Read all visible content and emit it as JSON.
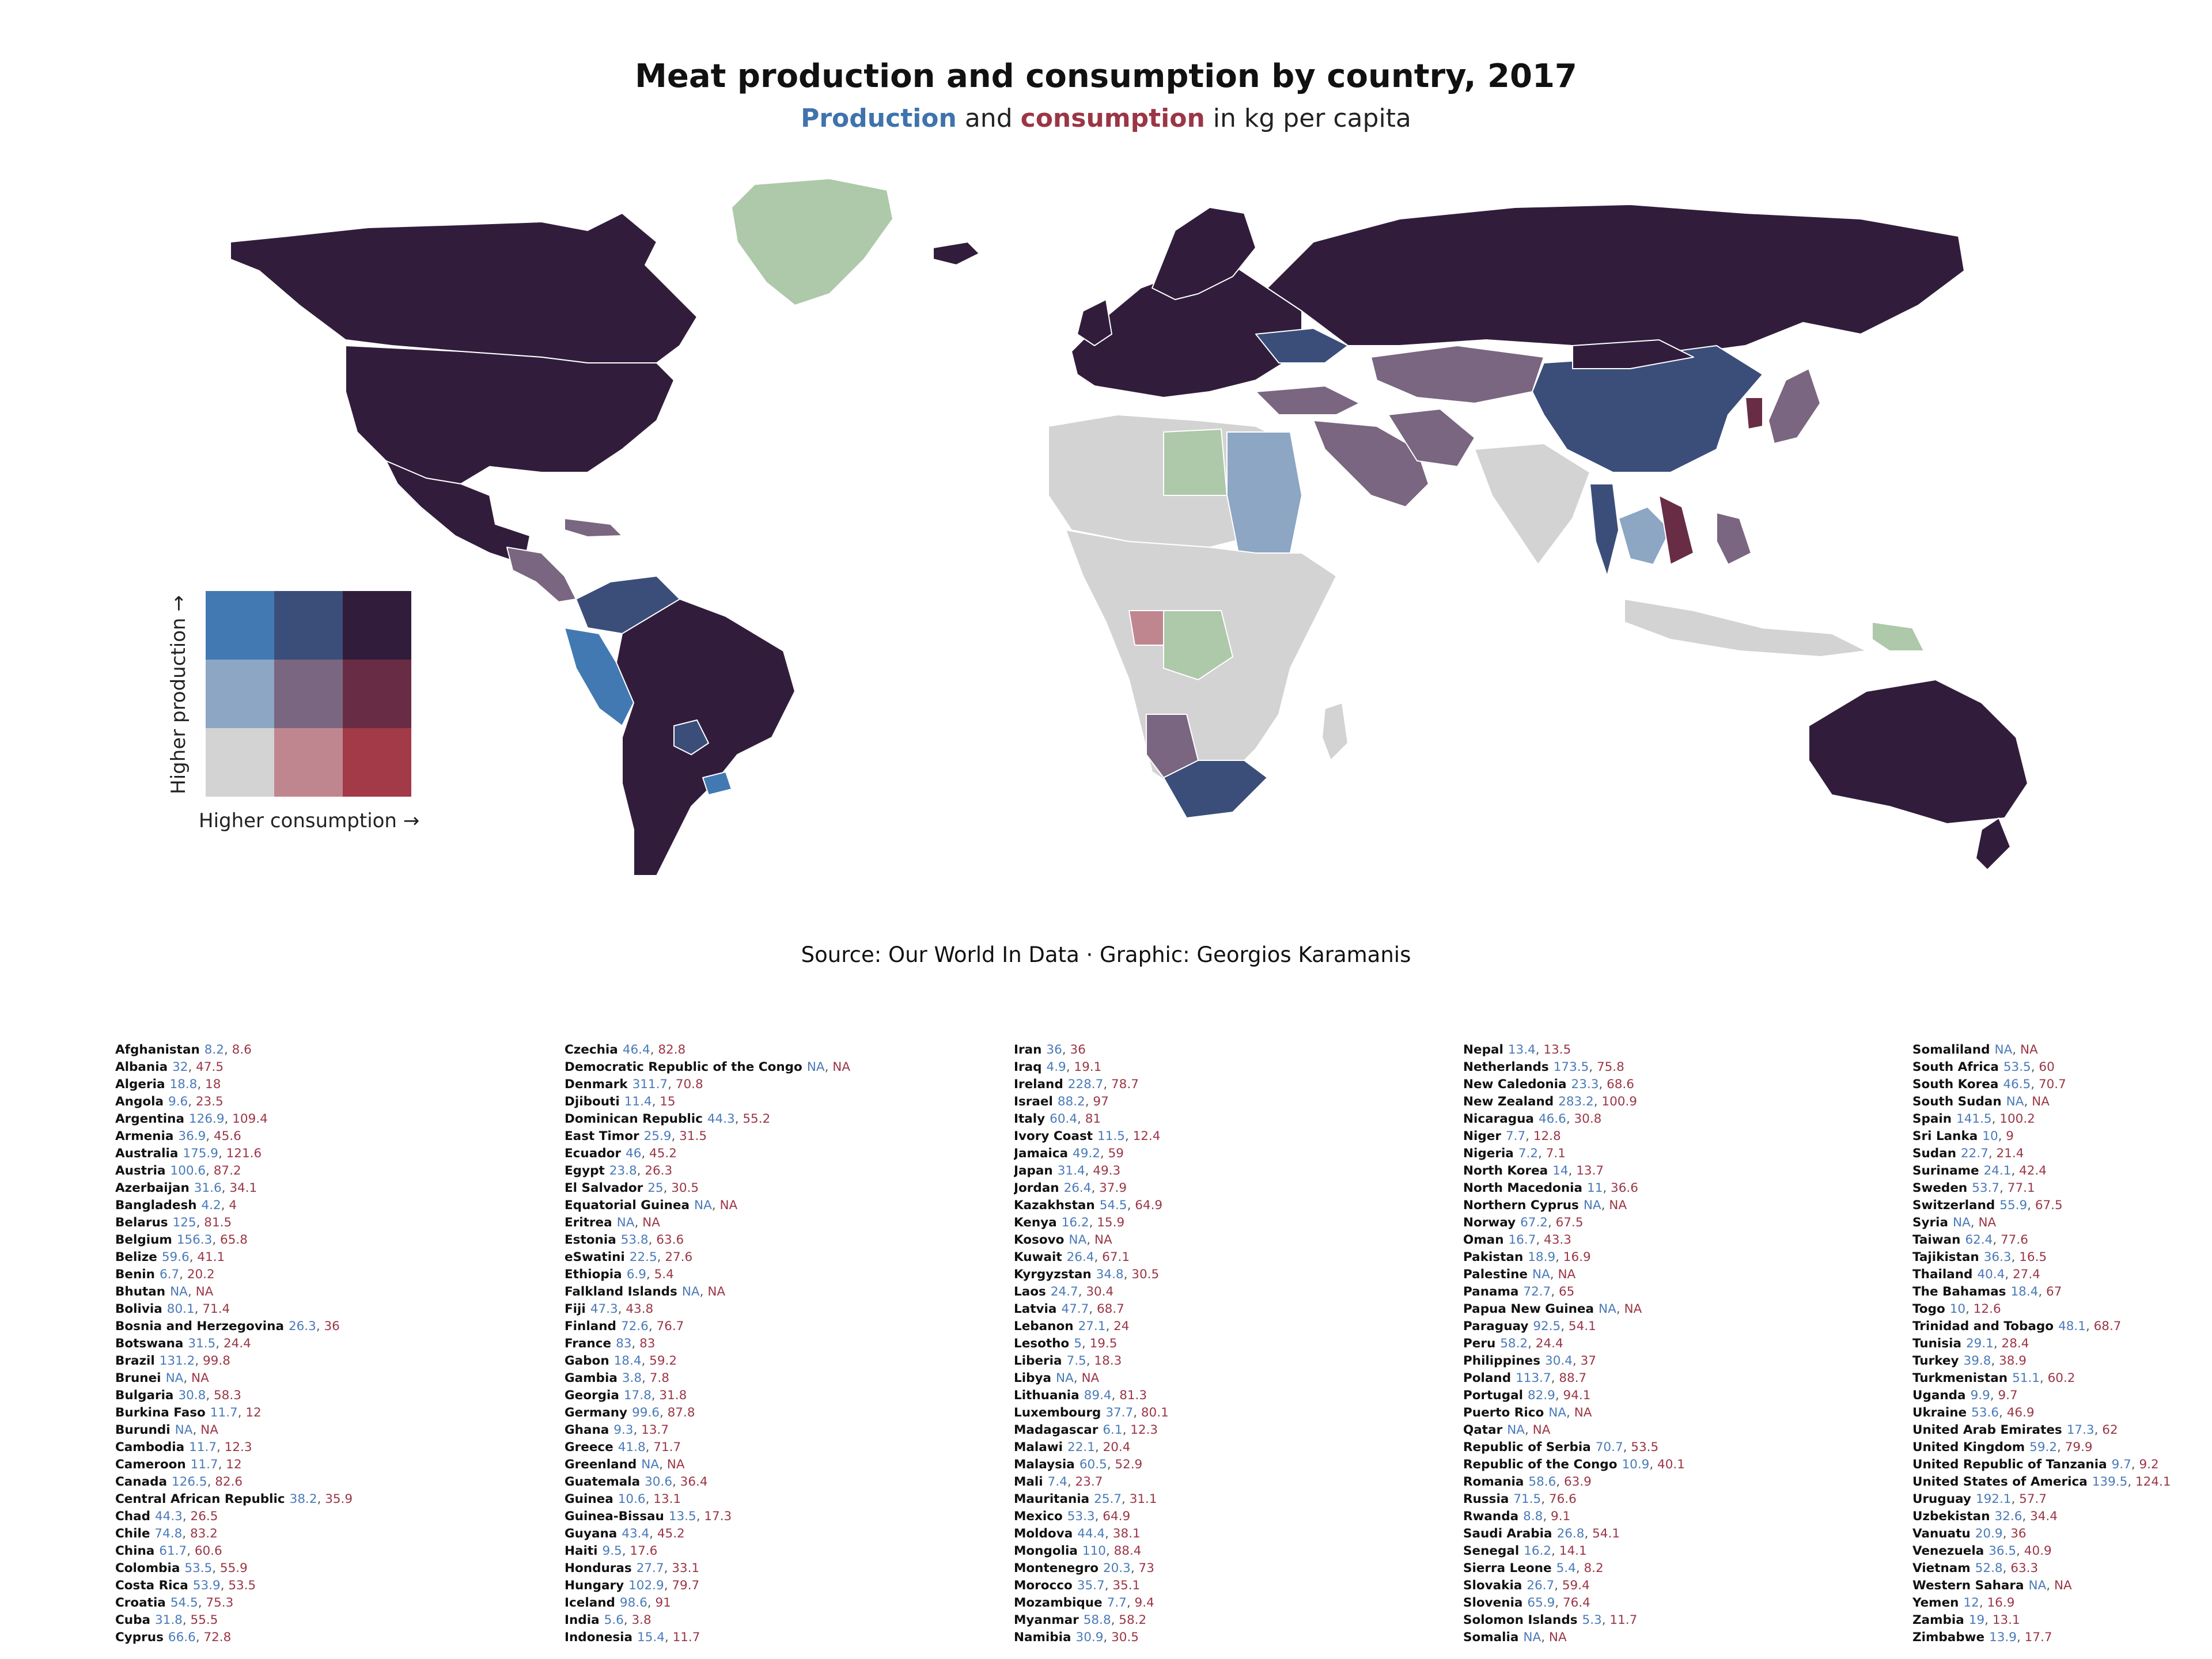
{
  "title": "Meat production and consumption by country, 2017",
  "subtitle": {
    "production_word": "Production",
    "and_word": " and ",
    "consumption_word": "consumption",
    "rest": " in kg per capita"
  },
  "legend": {
    "y_label": "Higher production →",
    "x_label": "Higher consumption →",
    "palette": [
      [
        "#4379b2",
        "#3b4e7a",
        "#311d3b"
      ],
      [
        "#8ca6c4",
        "#7a6680",
        "#682d45"
      ],
      [
        "#d3d3d3",
        "#c08690",
        "#a33a48"
      ]
    ],
    "na_color": "#aec8aa"
  },
  "source": "Source: Our World In Data · Graphic: Georgios Karamanis",
  "colors": {
    "production": "#4a7ab8",
    "consumption": "#9a3646",
    "dark": "#311d3b",
    "ocean": "#ffffff"
  },
  "countries": [
    {
      "name": "Afghanistan",
      "production": "8.2",
      "consumption": "8.6"
    },
    {
      "name": "Albania",
      "production": "32",
      "consumption": "47.5"
    },
    {
      "name": "Algeria",
      "production": "18.8",
      "consumption": "18"
    },
    {
      "name": "Angola",
      "production": "9.6",
      "consumption": "23.5"
    },
    {
      "name": "Argentina",
      "production": "126.9",
      "consumption": "109.4"
    },
    {
      "name": "Armenia",
      "production": "36.9",
      "consumption": "45.6"
    },
    {
      "name": "Australia",
      "production": "175.9",
      "consumption": "121.6"
    },
    {
      "name": "Austria",
      "production": "100.6",
      "consumption": "87.2"
    },
    {
      "name": "Azerbaijan",
      "production": "31.6",
      "consumption": "34.1"
    },
    {
      "name": "Bangladesh",
      "production": "4.2",
      "consumption": "4"
    },
    {
      "name": "Belarus",
      "production": "125",
      "consumption": "81.5"
    },
    {
      "name": "Belgium",
      "production": "156.3",
      "consumption": "65.8"
    },
    {
      "name": "Belize",
      "production": "59.6",
      "consumption": "41.1"
    },
    {
      "name": "Benin",
      "production": "6.7",
      "consumption": "20.2"
    },
    {
      "name": "Bhutan",
      "production": "NA",
      "consumption": "NA"
    },
    {
      "name": "Bolivia",
      "production": "80.1",
      "consumption": "71.4"
    },
    {
      "name": "Bosnia and Herzegovina",
      "production": "26.3",
      "consumption": "36"
    },
    {
      "name": "Botswana",
      "production": "31.5",
      "consumption": "24.4"
    },
    {
      "name": "Brazil",
      "production": "131.2",
      "consumption": "99.8"
    },
    {
      "name": "Brunei",
      "production": "NA",
      "consumption": "NA"
    },
    {
      "name": "Bulgaria",
      "production": "30.8",
      "consumption": "58.3"
    },
    {
      "name": "Burkina Faso",
      "production": "11.7",
      "consumption": "12"
    },
    {
      "name": "Burundi",
      "production": "NA",
      "consumption": "NA"
    },
    {
      "name": "Cambodia",
      "production": "11.7",
      "consumption": "12.3"
    },
    {
      "name": "Cameroon",
      "production": "11.7",
      "consumption": "12"
    },
    {
      "name": "Canada",
      "production": "126.5",
      "consumption": "82.6"
    },
    {
      "name": "Central African Republic",
      "production": "38.2",
      "consumption": "35.9"
    },
    {
      "name": "Chad",
      "production": "44.3",
      "consumption": "26.5"
    },
    {
      "name": "Chile",
      "production": "74.8",
      "consumption": "83.2"
    },
    {
      "name": "China",
      "production": "61.7",
      "consumption": "60.6"
    },
    {
      "name": "Colombia",
      "production": "53.5",
      "consumption": "55.9"
    },
    {
      "name": "Costa Rica",
      "production": "53.9",
      "consumption": "53.5"
    },
    {
      "name": "Croatia",
      "production": "54.5",
      "consumption": "75.3"
    },
    {
      "name": "Cuba",
      "production": "31.8",
      "consumption": "55.5"
    },
    {
      "name": "Cyprus",
      "production": "66.6",
      "consumption": "72.8"
    },
    {
      "name": "Czechia",
      "production": "46.4",
      "consumption": "82.8"
    },
    {
      "name": "Democratic Republic of the Congo",
      "production": "NA",
      "consumption": "NA"
    },
    {
      "name": "Denmark",
      "production": "311.7",
      "consumption": "70.8"
    },
    {
      "name": "Djibouti",
      "production": "11.4",
      "consumption": "15"
    },
    {
      "name": "Dominican Republic",
      "production": "44.3",
      "consumption": "55.2"
    },
    {
      "name": "East Timor",
      "production": "25.9",
      "consumption": "31.5"
    },
    {
      "name": "Ecuador",
      "production": "46",
      "consumption": "45.2"
    },
    {
      "name": "Egypt",
      "production": "23.8",
      "consumption": "26.3"
    },
    {
      "name": "El Salvador",
      "production": "25",
      "consumption": "30.5"
    },
    {
      "name": "Equatorial Guinea",
      "production": "NA",
      "consumption": "NA"
    },
    {
      "name": "Eritrea",
      "production": "NA",
      "consumption": "NA"
    },
    {
      "name": "Estonia",
      "production": "53.8",
      "consumption": "63.6"
    },
    {
      "name": "eSwatini",
      "production": "22.5",
      "consumption": "27.6"
    },
    {
      "name": "Ethiopia",
      "production": "6.9",
      "consumption": "5.4"
    },
    {
      "name": "Falkland Islands",
      "production": "NA",
      "consumption": "NA"
    },
    {
      "name": "Fiji",
      "production": "47.3",
      "consumption": "43.8"
    },
    {
      "name": "Finland",
      "production": "72.6",
      "consumption": "76.7"
    },
    {
      "name": "France",
      "production": "83",
      "consumption": "83"
    },
    {
      "name": "Gabon",
      "production": "18.4",
      "consumption": "59.2"
    },
    {
      "name": "Gambia",
      "production": "3.8",
      "consumption": "7.8"
    },
    {
      "name": "Georgia",
      "production": "17.8",
      "consumption": "31.8"
    },
    {
      "name": "Germany",
      "production": "99.6",
      "consumption": "87.8"
    },
    {
      "name": "Ghana",
      "production": "9.3",
      "consumption": "13.7"
    },
    {
      "name": "Greece",
      "production": "41.8",
      "consumption": "71.7"
    },
    {
      "name": "Greenland",
      "production": "NA",
      "consumption": "NA"
    },
    {
      "name": "Guatemala",
      "production": "30.6",
      "consumption": "36.4"
    },
    {
      "name": "Guinea",
      "production": "10.6",
      "consumption": "13.1"
    },
    {
      "name": "Guinea-Bissau",
      "production": "13.5",
      "consumption": "17.3"
    },
    {
      "name": "Guyana",
      "production": "43.4",
      "consumption": "45.2"
    },
    {
      "name": "Haiti",
      "production": "9.5",
      "consumption": "17.6"
    },
    {
      "name": "Honduras",
      "production": "27.7",
      "consumption": "33.1"
    },
    {
      "name": "Hungary",
      "production": "102.9",
      "consumption": "79.7"
    },
    {
      "name": "Iceland",
      "production": "98.6",
      "consumption": "91"
    },
    {
      "name": "India",
      "production": "5.6",
      "consumption": "3.8"
    },
    {
      "name": "Indonesia",
      "production": "15.4",
      "consumption": "11.7"
    },
    {
      "name": "Iran",
      "production": "36",
      "consumption": "36"
    },
    {
      "name": "Iraq",
      "production": "4.9",
      "consumption": "19.1"
    },
    {
      "name": "Ireland",
      "production": "228.7",
      "consumption": "78.7"
    },
    {
      "name": "Israel",
      "production": "88.2",
      "consumption": "97"
    },
    {
      "name": "Italy",
      "production": "60.4",
      "consumption": "81"
    },
    {
      "name": "Ivory Coast",
      "production": "11.5",
      "consumption": "12.4"
    },
    {
      "name": "Jamaica",
      "production": "49.2",
      "consumption": "59"
    },
    {
      "name": "Japan",
      "production": "31.4",
      "consumption": "49.3"
    },
    {
      "name": "Jordan",
      "production": "26.4",
      "consumption": "37.9"
    },
    {
      "name": "Kazakhstan",
      "production": "54.5",
      "consumption": "64.9"
    },
    {
      "name": "Kenya",
      "production": "16.2",
      "consumption": "15.9"
    },
    {
      "name": "Kosovo",
      "production": "NA",
      "consumption": "NA"
    },
    {
      "name": "Kuwait",
      "production": "26.4",
      "consumption": "67.1"
    },
    {
      "name": "Kyrgyzstan",
      "production": "34.8",
      "consumption": "30.5"
    },
    {
      "name": "Laos",
      "production": "24.7",
      "consumption": "30.4"
    },
    {
      "name": "Latvia",
      "production": "47.7",
      "consumption": "68.7"
    },
    {
      "name": "Lebanon",
      "production": "27.1",
      "consumption": "24"
    },
    {
      "name": "Lesotho",
      "production": "5",
      "consumption": "19.5"
    },
    {
      "name": "Liberia",
      "production": "7.5",
      "consumption": "18.3"
    },
    {
      "name": "Libya",
      "production": "NA",
      "consumption": "NA"
    },
    {
      "name": "Lithuania",
      "production": "89.4",
      "consumption": "81.3"
    },
    {
      "name": "Luxembourg",
      "production": "37.7",
      "consumption": "80.1"
    },
    {
      "name": "Madagascar",
      "production": "6.1",
      "consumption": "12.3"
    },
    {
      "name": "Malawi",
      "production": "22.1",
      "consumption": "20.4"
    },
    {
      "name": "Malaysia",
      "production": "60.5",
      "consumption": "52.9"
    },
    {
      "name": "Mali",
      "production": "7.4",
      "consumption": "23.7"
    },
    {
      "name": "Mauritania",
      "production": "25.7",
      "consumption": "31.1"
    },
    {
      "name": "Mexico",
      "production": "53.3",
      "consumption": "64.9"
    },
    {
      "name": "Moldova",
      "production": "44.4",
      "consumption": "38.1"
    },
    {
      "name": "Mongolia",
      "production": "110",
      "consumption": "88.4"
    },
    {
      "name": "Montenegro",
      "production": "20.3",
      "consumption": "73"
    },
    {
      "name": "Morocco",
      "production": "35.7",
      "consumption": "35.1"
    },
    {
      "name": "Mozambique",
      "production": "7.7",
      "consumption": "9.4"
    },
    {
      "name": "Myanmar",
      "production": "58.8",
      "consumption": "58.2"
    },
    {
      "name": "Namibia",
      "production": "30.9",
      "consumption": "30.5"
    },
    {
      "name": "Nepal",
      "production": "13.4",
      "consumption": "13.5"
    },
    {
      "name": "Netherlands",
      "production": "173.5",
      "consumption": "75.8"
    },
    {
      "name": "New Caledonia",
      "production": "23.3",
      "consumption": "68.6"
    },
    {
      "name": "New Zealand",
      "production": "283.2",
      "consumption": "100.9"
    },
    {
      "name": "Nicaragua",
      "production": "46.6",
      "consumption": "30.8"
    },
    {
      "name": "Niger",
      "production": "7.7",
      "consumption": "12.8"
    },
    {
      "name": "Nigeria",
      "production": "7.2",
      "consumption": "7.1"
    },
    {
      "name": "North Korea",
      "production": "14",
      "consumption": "13.7"
    },
    {
      "name": "North Macedonia",
      "production": "11",
      "consumption": "36.6"
    },
    {
      "name": "Northern Cyprus",
      "production": "NA",
      "consumption": "NA"
    },
    {
      "name": "Norway",
      "production": "67.2",
      "consumption": "67.5"
    },
    {
      "name": "Oman",
      "production": "16.7",
      "consumption": "43.3"
    },
    {
      "name": "Pakistan",
      "production": "18.9",
      "consumption": "16.9"
    },
    {
      "name": "Palestine",
      "production": "NA",
      "consumption": "NA"
    },
    {
      "name": "Panama",
      "production": "72.7",
      "consumption": "65"
    },
    {
      "name": "Papua New Guinea",
      "production": "NA",
      "consumption": "NA"
    },
    {
      "name": "Paraguay",
      "production": "92.5",
      "consumption": "54.1"
    },
    {
      "name": "Peru",
      "production": "58.2",
      "consumption": "24.4"
    },
    {
      "name": "Philippines",
      "production": "30.4",
      "consumption": "37"
    },
    {
      "name": "Poland",
      "production": "113.7",
      "consumption": "88.7"
    },
    {
      "name": "Portugal",
      "production": "82.9",
      "consumption": "94.1"
    },
    {
      "name": "Puerto Rico",
      "production": "NA",
      "consumption": "NA"
    },
    {
      "name": "Qatar",
      "production": "NA",
      "consumption": "NA"
    },
    {
      "name": "Republic of Serbia",
      "production": "70.7",
      "consumption": "53.5"
    },
    {
      "name": "Republic of the Congo",
      "production": "10.9",
      "consumption": "40.1"
    },
    {
      "name": "Romania",
      "production": "58.6",
      "consumption": "63.9"
    },
    {
      "name": "Russia",
      "production": "71.5",
      "consumption": "76.6"
    },
    {
      "name": "Rwanda",
      "production": "8.8",
      "consumption": "9.1"
    },
    {
      "name": "Saudi Arabia",
      "production": "26.8",
      "consumption": "54.1"
    },
    {
      "name": "Senegal",
      "production": "16.2",
      "consumption": "14.1"
    },
    {
      "name": "Sierra Leone",
      "production": "5.4",
      "consumption": "8.2"
    },
    {
      "name": "Slovakia",
      "production": "26.7",
      "consumption": "59.4"
    },
    {
      "name": "Slovenia",
      "production": "65.9",
      "consumption": "76.4"
    },
    {
      "name": "Solomon Islands",
      "production": "5.3",
      "consumption": "11.7"
    },
    {
      "name": "Somalia",
      "production": "NA",
      "consumption": "NA"
    },
    {
      "name": "Somaliland",
      "production": "NA",
      "consumption": "NA"
    },
    {
      "name": "South Africa",
      "production": "53.5",
      "consumption": "60"
    },
    {
      "name": "South Korea",
      "production": "46.5",
      "consumption": "70.7"
    },
    {
      "name": "South Sudan",
      "production": "NA",
      "consumption": "NA"
    },
    {
      "name": "Spain",
      "production": "141.5",
      "consumption": "100.2"
    },
    {
      "name": "Sri Lanka",
      "production": "10",
      "consumption": "9"
    },
    {
      "name": "Sudan",
      "production": "22.7",
      "consumption": "21.4"
    },
    {
      "name": "Suriname",
      "production": "24.1",
      "consumption": "42.4"
    },
    {
      "name": "Sweden",
      "production": "53.7",
      "consumption": "77.1"
    },
    {
      "name": "Switzerland",
      "production": "55.9",
      "consumption": "67.5"
    },
    {
      "name": "Syria",
      "production": "NA",
      "consumption": "NA"
    },
    {
      "name": "Taiwan",
      "production": "62.4",
      "consumption": "77.6"
    },
    {
      "name": "Tajikistan",
      "production": "36.3",
      "consumption": "16.5"
    },
    {
      "name": "Thailand",
      "production": "40.4",
      "consumption": "27.4"
    },
    {
      "name": "The Bahamas",
      "production": "18.4",
      "consumption": "67"
    },
    {
      "name": "Togo",
      "production": "10",
      "consumption": "12.6"
    },
    {
      "name": "Trinidad and Tobago",
      "production": "48.1",
      "consumption": "68.7"
    },
    {
      "name": "Tunisia",
      "production": "29.1",
      "consumption": "28.4"
    },
    {
      "name": "Turkey",
      "production": "39.8",
      "consumption": "38.9"
    },
    {
      "name": "Turkmenistan",
      "production": "51.1",
      "consumption": "60.2"
    },
    {
      "name": "Uganda",
      "production": "9.9",
      "consumption": "9.7"
    },
    {
      "name": "Ukraine",
      "production": "53.6",
      "consumption": "46.9"
    },
    {
      "name": "United Arab Emirates",
      "production": "17.3",
      "consumption": "62"
    },
    {
      "name": "United Kingdom",
      "production": "59.2",
      "consumption": "79.9"
    },
    {
      "name": "United Republic of Tanzania",
      "production": "9.7",
      "consumption": "9.2"
    },
    {
      "name": "United States of America",
      "production": "139.5",
      "consumption": "124.1"
    },
    {
      "name": "Uruguay",
      "production": "192.1",
      "consumption": "57.7"
    },
    {
      "name": "Uzbekistan",
      "production": "32.6",
      "consumption": "34.4"
    },
    {
      "name": "Vanuatu",
      "production": "20.9",
      "consumption": "36"
    },
    {
      "name": "Venezuela",
      "production": "36.5",
      "consumption": "40.9"
    },
    {
      "name": "Vietnam",
      "production": "52.8",
      "consumption": "63.3"
    },
    {
      "name": "Western Sahara",
      "production": "NA",
      "consumption": "NA"
    },
    {
      "name": "Yemen",
      "production": "12",
      "consumption": "16.9"
    },
    {
      "name": "Zambia",
      "production": "19",
      "consumption": "13.1"
    },
    {
      "name": "Zimbabwe",
      "production": "13.9",
      "consumption": "17.7"
    }
  ]
}
